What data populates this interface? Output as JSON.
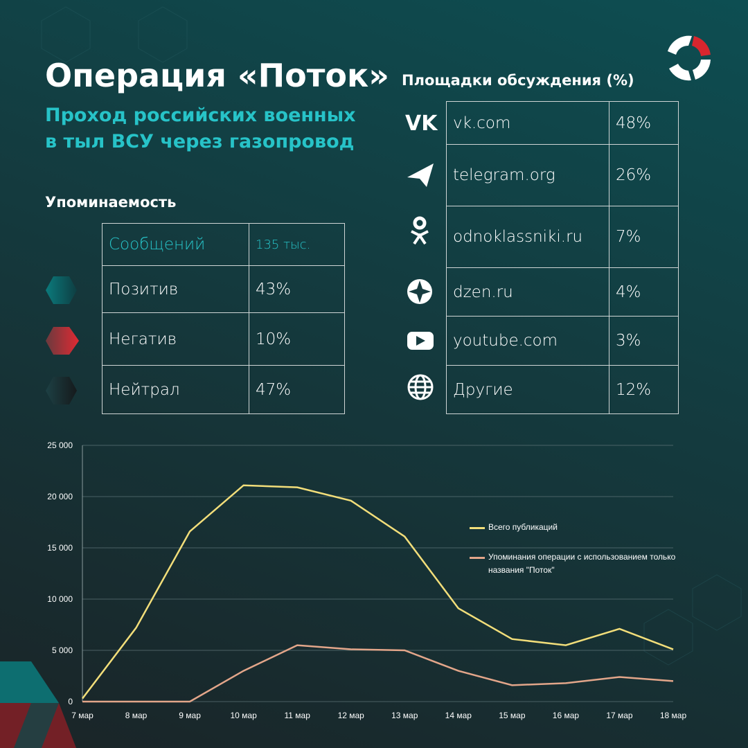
{
  "header": {
    "title": "Операция «Поток»",
    "subtitle": "Проход российских военных в тыл ВСУ через газопровод"
  },
  "mentions": {
    "title": "Упоминаемость",
    "rows": [
      [
        "Сообщений",
        "135 тыс."
      ],
      [
        "Позитив",
        "43%"
      ],
      [
        "Негатив",
        "10%"
      ],
      [
        "Нейтрал",
        "47%"
      ]
    ]
  },
  "platforms": {
    "title": "Площадки обсуждения (%)",
    "rows": [
      [
        "vk.com",
        "48%"
      ],
      [
        "telegram.org",
        "26%"
      ],
      [
        "odnoklassniki.ru",
        "7%"
      ],
      [
        "dzen.ru",
        "4%"
      ],
      [
        "youtube.com",
        "3%"
      ],
      [
        "Другие",
        "12%"
      ]
    ]
  },
  "chart_data": {
    "type": "line",
    "categories": [
      "7 мар",
      "8 мар",
      "9 мар",
      "10 мар",
      "11 мар",
      "12 мар",
      "13 мар",
      "14 мар",
      "15 мар",
      "16 мар",
      "17 мар",
      "18 мар"
    ],
    "series": [
      {
        "name": "Всего публикаций",
        "color": "#f2de7a",
        "values": [
          300,
          7200,
          16600,
          21100,
          20900,
          19600,
          16100,
          9100,
          6100,
          5500,
          7100,
          5100
        ]
      },
      {
        "name": "Упоминания операции с использованием только названия \"Поток\"",
        "color": "#e3a68a",
        "values": [
          0,
          0,
          0,
          3000,
          5500,
          5100,
          5000,
          3000,
          1600,
          1800,
          2400,
          2000
        ]
      }
    ],
    "ylim": [
      0,
      25000
    ],
    "yticks": [
      {
        "value": 0,
        "label": "0"
      },
      {
        "value": 5000,
        "label": "5 000"
      },
      {
        "value": 10000,
        "label": "10 000"
      },
      {
        "value": 15000,
        "label": "15 000"
      },
      {
        "value": 20000,
        "label": "20 000"
      },
      {
        "value": 25000,
        "label": "25 000"
      }
    ],
    "grid": true
  }
}
